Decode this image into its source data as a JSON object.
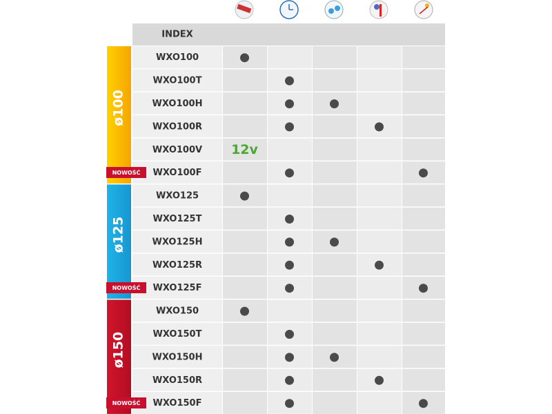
{
  "header": {
    "index": "INDEX"
  },
  "groups": [
    {
      "label": "ø100",
      "rows": [
        {
          "model": "WXO100",
          "cells": [
            true,
            false,
            false,
            false,
            false
          ]
        },
        {
          "model": "WXO100T",
          "cells": [
            false,
            true,
            false,
            false,
            false
          ]
        },
        {
          "model": "WXO100H",
          "cells": [
            false,
            true,
            true,
            false,
            false
          ]
        },
        {
          "model": "WXO100R",
          "cells": [
            false,
            true,
            false,
            true,
            false
          ]
        },
        {
          "model": "WXO100V",
          "cells": [
            "12v",
            false,
            false,
            false,
            false
          ]
        },
        {
          "model": "WXO100F",
          "badge": "NOWOŚĆ",
          "cells": [
            false,
            true,
            false,
            false,
            true
          ]
        }
      ]
    },
    {
      "label": "ø125",
      "rows": [
        {
          "model": "WXO125",
          "cells": [
            true,
            false,
            false,
            false,
            false
          ]
        },
        {
          "model": "WXO125T",
          "cells": [
            false,
            true,
            false,
            false,
            false
          ]
        },
        {
          "model": "WXO125H",
          "cells": [
            false,
            true,
            true,
            false,
            false
          ]
        },
        {
          "model": "WXO125R",
          "cells": [
            false,
            true,
            false,
            true,
            false
          ]
        },
        {
          "model": "WXO125F",
          "badge": "NOWOŚĆ",
          "cells": [
            false,
            true,
            false,
            false,
            true
          ]
        }
      ]
    },
    {
      "label": "ø150",
      "rows": [
        {
          "model": "WXO150",
          "cells": [
            true,
            false,
            false,
            false,
            false
          ]
        },
        {
          "model": "WXO150T",
          "cells": [
            false,
            true,
            false,
            false,
            false
          ]
        },
        {
          "model": "WXO150H",
          "cells": [
            false,
            true,
            true,
            false,
            false
          ]
        },
        {
          "model": "WXO150R",
          "cells": [
            false,
            true,
            false,
            true,
            false
          ]
        },
        {
          "model": "WXO150F",
          "badge": "NOWOŚĆ",
          "cells": [
            false,
            true,
            false,
            false,
            true
          ]
        }
      ]
    }
  ]
}
